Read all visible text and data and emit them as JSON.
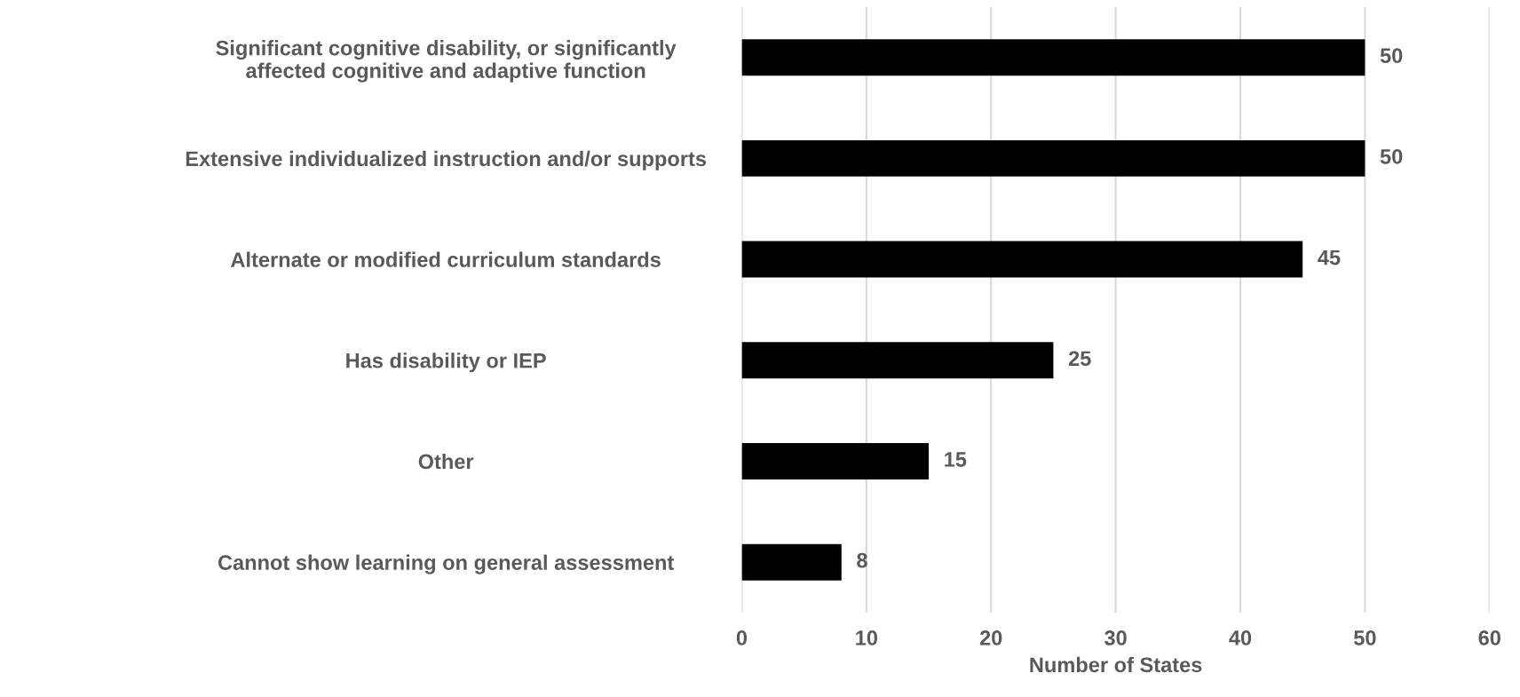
{
  "chart_data": {
    "type": "bar",
    "orientation": "horizontal",
    "categories": [
      "Significant cognitive disability, or significantly\naffected cognitive and adaptive function",
      "Extensive individualized instruction and/or supports",
      "Alternate or modified curriculum standards",
      "Has disability or IEP",
      "Other",
      "Cannot show learning on general assessment"
    ],
    "values": [
      50,
      50,
      45,
      25,
      15,
      8
    ],
    "color": "#000000",
    "xlim": [
      0,
      60
    ],
    "xticks": [
      0,
      10,
      20,
      30,
      40,
      50,
      60
    ],
    "xlabel": "Number of States",
    "grid": "x",
    "data_labels": true,
    "legend": false
  }
}
